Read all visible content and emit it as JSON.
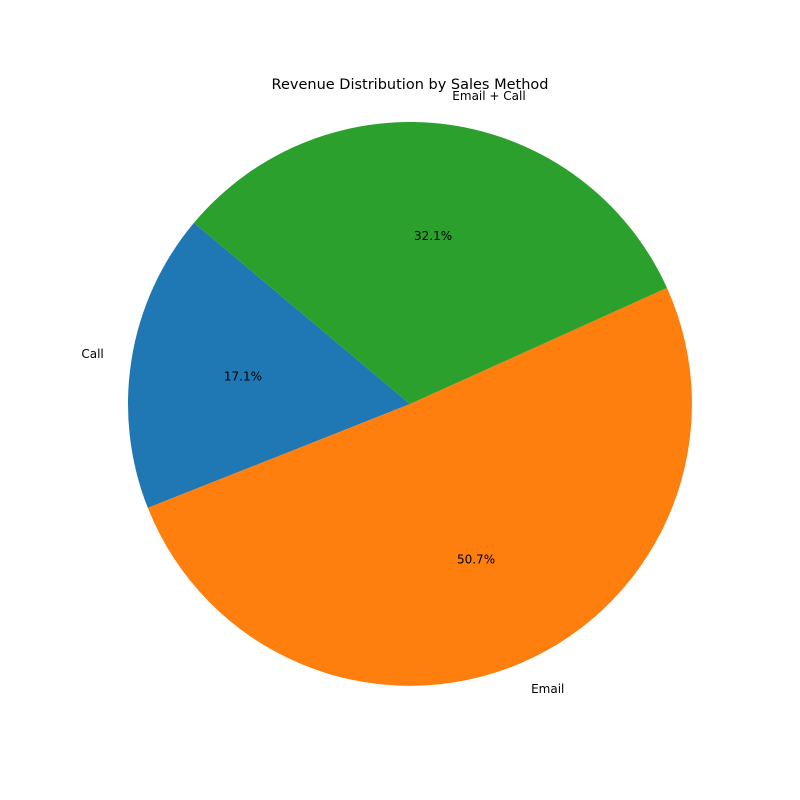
{
  "chart_data": {
    "type": "pie",
    "title": "Revenue Distribution by Sales Method",
    "slices": [
      {
        "label": "Call",
        "value": 17.1,
        "pct_label": "17.1%",
        "color": "#1f77b4"
      },
      {
        "label": "Email",
        "value": 50.7,
        "pct_label": "50.7%",
        "color": "#ff7f0e"
      },
      {
        "label": "Email + Call",
        "value": 32.1,
        "pct_label": "32.1%",
        "color": "#2ca02c"
      }
    ],
    "start_angle_deg": 140,
    "direction": "counterclockwise"
  }
}
